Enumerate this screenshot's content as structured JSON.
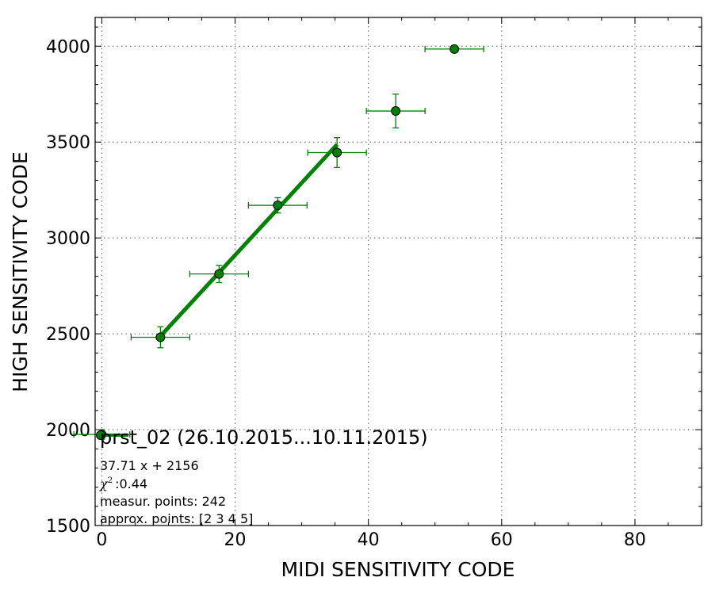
{
  "chart_data": {
    "type": "scatter",
    "xlabel": "MIDI SENSITIVITY CODE",
    "ylabel": "HIGH SENSITIVITY CODE",
    "xlim": [
      -1,
      90
    ],
    "ylim": [
      1500,
      4150
    ],
    "x_ticks": [
      0,
      20,
      40,
      60,
      80
    ],
    "y_ticks": [
      1500,
      2000,
      2500,
      3000,
      3500,
      4000
    ],
    "grid": true,
    "grid_style": "dotted",
    "color": "#008000",
    "points": [
      {
        "x": 0.0,
        "y": 1975,
        "xerr": 4.2,
        "yerr": 25
      },
      {
        "x": 8.8,
        "y": 2482,
        "xerr": 4.4,
        "yerr": 55
      },
      {
        "x": 17.6,
        "y": 2812,
        "xerr": 4.4,
        "yerr": 45
      },
      {
        "x": 26.4,
        "y": 3170,
        "xerr": 4.4,
        "yerr": 40
      },
      {
        "x": 35.3,
        "y": 3445,
        "xerr": 4.4,
        "yerr": 78
      },
      {
        "x": 44.1,
        "y": 3662,
        "xerr": 4.4,
        "yerr": 88
      },
      {
        "x": 52.9,
        "y": 3985,
        "xerr": 4.4,
        "yerr": 12
      }
    ],
    "fit": {
      "slope": 37.71,
      "intercept": 2156,
      "x_range": [
        8.8,
        35.3
      ]
    },
    "legend": {
      "placement": "lower-left",
      "title": "prst_02 (26.10.2015...10.11.2015)",
      "equation": "37.71 x + 2156",
      "chi_symbol": "χ",
      "chi_exp": "2",
      "chi_value": ":0.44",
      "measur_points": "measur. points: 242",
      "approx_points": "approx. points: [2 3 4 5]"
    }
  }
}
